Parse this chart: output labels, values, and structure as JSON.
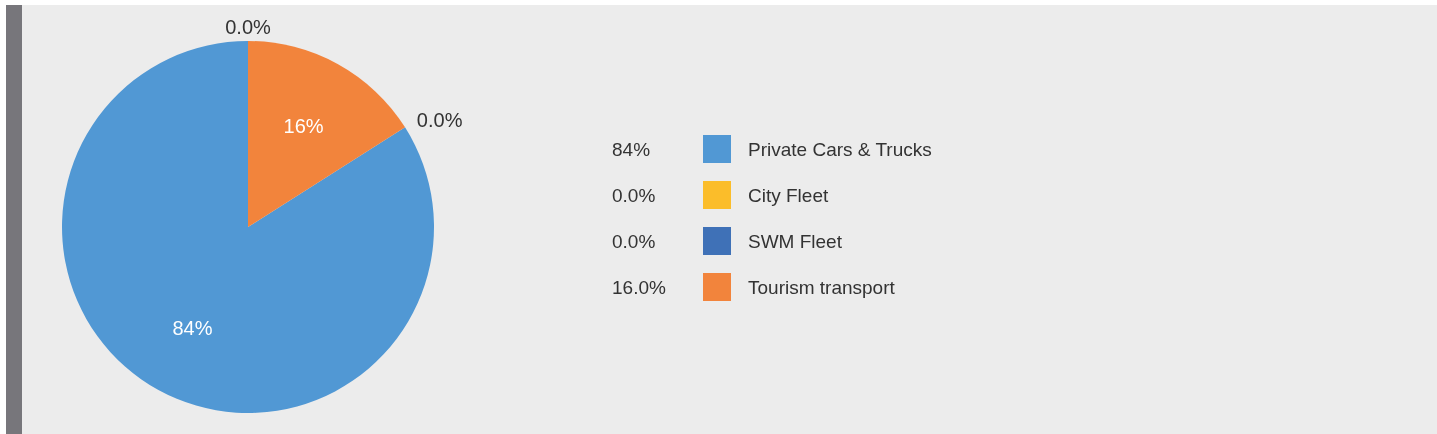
{
  "chart_data": {
    "type": "pie",
    "categories": [
      "Private Cars & Trucks",
      "City Fleet",
      "SWM Fleet",
      "Tourism transport"
    ],
    "values": [
      84,
      0,
      0,
      16
    ],
    "colors": [
      "#5198d4",
      "#fbbd2a",
      "#3f71b7",
      "#f2843c"
    ],
    "value_labels": [
      "84%",
      "0.0%",
      "0.0%",
      "16.0%"
    ],
    "annotations": [
      {
        "text": "84%",
        "x": "Private Cars & Trucks"
      },
      {
        "text": "0.0%",
        "x": "City Fleet"
      },
      {
        "text": "0.0%",
        "x": "SWM Fleet"
      },
      {
        "text": "16%",
        "x": "Tourism transport"
      }
    ],
    "legend": "right"
  }
}
